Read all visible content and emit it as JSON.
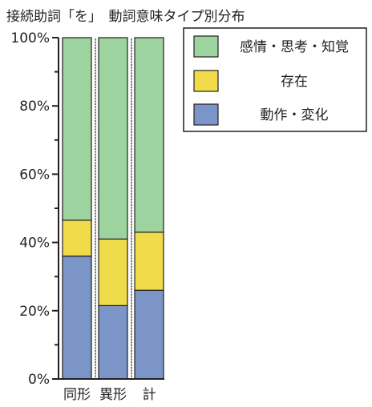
{
  "title": "接続助詞「を」　動詞意味タイプ別分布",
  "chart_data": {
    "type": "bar",
    "stacked": true,
    "categories": [
      "同形",
      "異形",
      "計"
    ],
    "ylim": [
      0,
      100
    ],
    "yticks": [
      "0%",
      "20%",
      "40%",
      "60%",
      "80%",
      "100%"
    ],
    "series": [
      {
        "name": "動作・変化",
        "color": "#7c95c8",
        "values": [
          36,
          21.5,
          26
        ]
      },
      {
        "name": "存在",
        "color": "#f0dc4a",
        "values": [
          10.5,
          19.5,
          17
        ]
      },
      {
        "name": "感情・思考・知覚",
        "color": "#9dd39f",
        "values": [
          53.5,
          59,
          57
        ]
      }
    ],
    "legend_position": "top-right",
    "legend_order": [
      "感情・思考・知覚",
      "存在",
      "動作・変化"
    ],
    "separator_lines": "dotted"
  }
}
